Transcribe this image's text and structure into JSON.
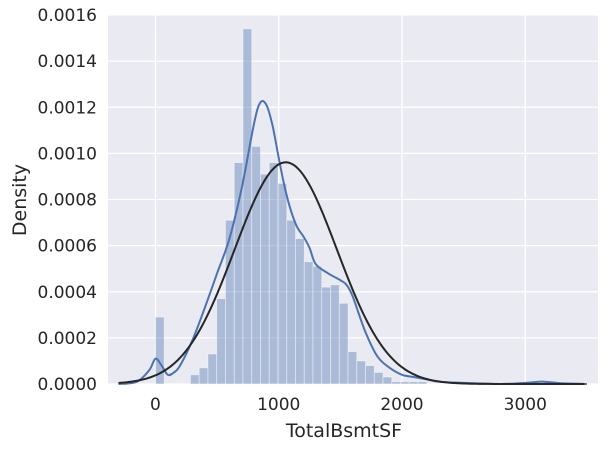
{
  "chart_data": {
    "type": "histogram",
    "xlabel": "TotalBsmtSF",
    "ylabel": "Density",
    "xlim": [
      -385,
      3590
    ],
    "ylim": [
      0,
      0.0016
    ],
    "x_ticks": [
      0,
      1000,
      2000,
      3000
    ],
    "x_tick_labels": [
      "0",
      "1000",
      "2000",
      "3000"
    ],
    "y_ticks": [
      0,
      0.0002,
      0.0004,
      0.0006,
      0.0008,
      0.001,
      0.0012,
      0.0014,
      0.0016
    ],
    "y_tick_labels": [
      "0.0000",
      "0.0002",
      "0.0004",
      "0.0006",
      "0.0008",
      "0.0010",
      "0.0012",
      "0.0014",
      "0.0016"
    ],
    "grid": true,
    "background": "#eaeaf2",
    "histogram": {
      "bin_edges": [
        0,
        71,
        142,
        213,
        284,
        355,
        426,
        497,
        568,
        639,
        710,
        781,
        852,
        923,
        994,
        1065,
        1136,
        1207,
        1278,
        1349,
        1420,
        1491,
        1562,
        1633,
        1704,
        1775,
        1846,
        1917,
        1988,
        2059,
        2130,
        2201,
        2272,
        2343,
        2414,
        2485,
        2556,
        2627,
        2698,
        2769,
        2840,
        2911,
        2982,
        3053,
        3124,
        3195
      ],
      "density": [
        0.00029,
        0,
        0,
        0,
        4e-05,
        7e-05,
        0.00013,
        0.00037,
        0.00071,
        0.00096,
        0.00154,
        0.00103,
        0.00091,
        0.00096,
        0.00087,
        0.00071,
        0.00063,
        0.00053,
        0.00051,
        0.00042,
        0.00043,
        0.00035,
        0.00014,
        0.0001,
        8e-05,
        5e-05,
        3e-05,
        1e-05,
        1e-05,
        1e-05,
        1e-05,
        0,
        0,
        0,
        0,
        0,
        0,
        0,
        0,
        0,
        0,
        0,
        0,
        0,
        5e-06
      ],
      "color": "#4c72b0",
      "alpha": 0.4
    },
    "kde": {
      "color": "#4c72b0",
      "x": [
        -300,
        -150,
        -50,
        0,
        50,
        100,
        150,
        200,
        300,
        400,
        500,
        600,
        700,
        800,
        850,
        900,
        950,
        1000,
        1050,
        1100,
        1150,
        1200,
        1250,
        1300,
        1400,
        1500,
        1550,
        1600,
        1700,
        1800,
        1900,
        2000,
        2100,
        2200,
        2300,
        2500,
        2800,
        3000,
        3150,
        3300,
        3500
      ],
      "y": [
        0,
        1e-05,
        6e-05,
        0.00011,
        8e-05,
        4e-05,
        5e-05,
        8e-05,
        0.00019,
        0.00033,
        0.00048,
        0.00063,
        0.00085,
        0.00113,
        0.00122,
        0.00121,
        0.00112,
        0.00098,
        0.00085,
        0.00075,
        0.00068,
        0.00064,
        0.00059,
        0.00052,
        0.00048,
        0.00045,
        0.00043,
        0.00038,
        0.00023,
        0.00012,
        7e-05,
        4e-05,
        3e-05,
        2e-05,
        1e-05,
        5e-06,
        0,
        5e-06,
        1e-05,
        3e-06,
        0
      ]
    },
    "normal_fit": {
      "color": "#262626",
      "mean": 1057,
      "std": 415
    }
  }
}
